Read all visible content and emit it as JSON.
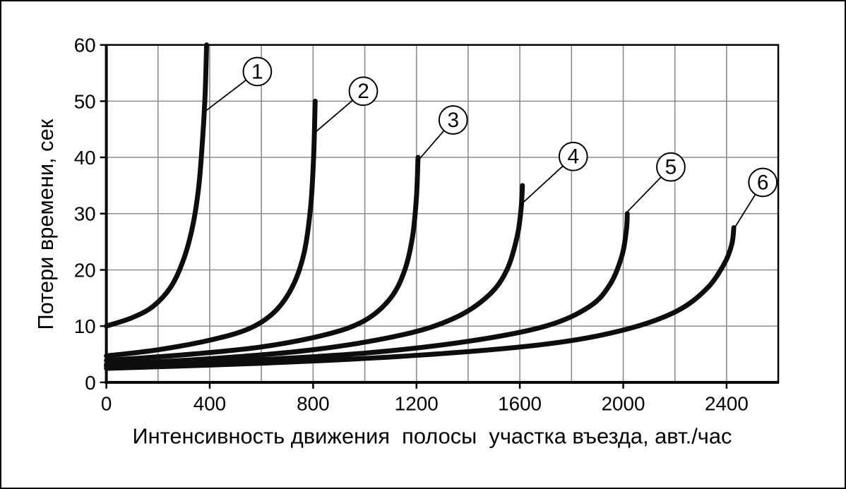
{
  "page": {
    "background": "#ffffff",
    "border_color": "#000000"
  },
  "chart_data": {
    "type": "line",
    "title": "",
    "xlabel": "Интенсивность движения  полосы  участка въезда, авт./час",
    "ylabel": "Потери времени, сек",
    "xlim": [
      0,
      2600
    ],
    "ylim": [
      0,
      60
    ],
    "xticks": [
      0,
      400,
      800,
      1200,
      1600,
      2000,
      2400
    ],
    "yticks": [
      0,
      10,
      20,
      30,
      40,
      50,
      60
    ],
    "grid": {
      "on": true,
      "x_step": 200,
      "y_step": 10,
      "color": "#8c8c8c",
      "width": 1.6
    },
    "legend_position": "none",
    "line_color": "#0d0d0d",
    "line_width": 7,
    "axis_color": "#000000",
    "series": [
      {
        "name": "1",
        "points": [
          [
            0,
            10
          ],
          [
            100,
            11.5
          ],
          [
            180,
            13.5
          ],
          [
            250,
            17
          ],
          [
            300,
            22
          ],
          [
            335,
            28
          ],
          [
            358,
            35
          ],
          [
            372,
            43
          ],
          [
            382,
            51
          ],
          [
            388,
            60
          ]
        ]
      },
      {
        "name": "2",
        "points": [
          [
            0,
            4.7
          ],
          [
            200,
            5.8
          ],
          [
            400,
            7.5
          ],
          [
            550,
            9.5
          ],
          [
            650,
            12.5
          ],
          [
            720,
            17
          ],
          [
            765,
            23
          ],
          [
            790,
            31
          ],
          [
            802,
            40
          ],
          [
            808,
            50
          ]
        ]
      },
      {
        "name": "3",
        "points": [
          [
            0,
            3.9
          ],
          [
            300,
            4.9
          ],
          [
            600,
            6.3
          ],
          [
            850,
            8.5
          ],
          [
            1000,
            11
          ],
          [
            1100,
            15
          ],
          [
            1155,
            20
          ],
          [
            1185,
            26
          ],
          [
            1200,
            33
          ],
          [
            1206,
            40
          ]
        ]
      },
      {
        "name": "4",
        "points": [
          [
            0,
            3.2
          ],
          [
            400,
            4.2
          ],
          [
            800,
            5.8
          ],
          [
            1150,
            8.5
          ],
          [
            1350,
            11.5
          ],
          [
            1480,
            15.5
          ],
          [
            1550,
            20
          ],
          [
            1590,
            26
          ],
          [
            1605,
            31
          ],
          [
            1610,
            35
          ]
        ]
      },
      {
        "name": "5",
        "points": [
          [
            0,
            2.9
          ],
          [
            500,
            3.8
          ],
          [
            1000,
            5.2
          ],
          [
            1400,
            7.3
          ],
          [
            1700,
            10
          ],
          [
            1870,
            13.5
          ],
          [
            1950,
            17.5
          ],
          [
            1995,
            22.5
          ],
          [
            2012,
            27
          ],
          [
            2016,
            30
          ]
        ]
      },
      {
        "name": "6",
        "points": [
          [
            0,
            2.5
          ],
          [
            600,
            3.4
          ],
          [
            1200,
            4.8
          ],
          [
            1700,
            6.8
          ],
          [
            2000,
            9.3
          ],
          [
            2200,
            12.5
          ],
          [
            2320,
            16.5
          ],
          [
            2390,
            21
          ],
          [
            2420,
            24.5
          ],
          [
            2428,
            27.5
          ]
        ]
      }
    ],
    "annotations": [
      {
        "label": "1",
        "circle": [
          363,
          100
        ],
        "target": [
          287,
          158
        ]
      },
      {
        "label": "2",
        "circle": [
          514,
          128
        ],
        "target": [
          445,
          187
        ]
      },
      {
        "label": "3",
        "circle": [
          642,
          169
        ],
        "target": [
          591,
          228
        ]
      },
      {
        "label": "4",
        "circle": [
          813,
          221
        ],
        "target": [
          738,
          290
        ]
      },
      {
        "label": "5",
        "circle": [
          952,
          236
        ],
        "target": [
          888,
          302
        ]
      },
      {
        "label": "6",
        "circle": [
          1083,
          258
        ],
        "target": [
          1042,
          324
        ]
      }
    ]
  }
}
